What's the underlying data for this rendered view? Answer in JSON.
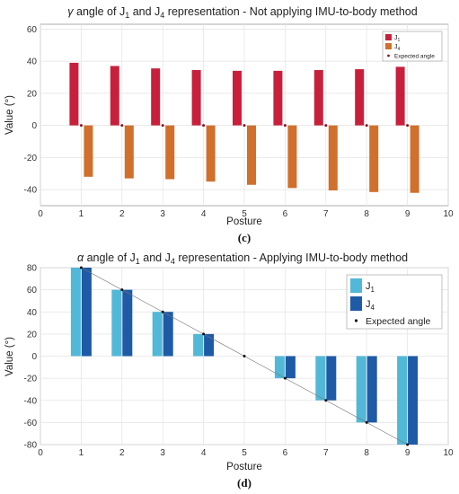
{
  "chart_data": [
    {
      "type": "bar",
      "title_symbol": "γ",
      "title_a": " angle of J",
      "title_sub1": "1",
      "title_b": " and J",
      "title_sub2": "4",
      "title_c": " representation - Not applying IMU-to-body method",
      "panel_label": "(c)",
      "xlabel": "Posture",
      "ylabel": "Value (°)",
      "xlim": [
        0,
        10
      ],
      "ylim": [
        -50,
        63
      ],
      "xticks": [
        0,
        1,
        2,
        3,
        4,
        5,
        6,
        7,
        8,
        9,
        10
      ],
      "yticks": [
        -40,
        -20,
        0,
        20,
        40,
        60
      ],
      "grid": true,
      "legend_position": "top-right",
      "x": [
        1,
        2,
        3,
        4,
        5,
        6,
        7,
        8,
        9
      ],
      "series": [
        {
          "name": "J1",
          "color": "#c8203c",
          "values": [
            39,
            37,
            35.5,
            34.5,
            34,
            34,
            34.5,
            35,
            36.5
          ]
        },
        {
          "name": "J4",
          "color": "#d0702c",
          "values": [
            -32,
            -33,
            -33.5,
            -35,
            -37,
            -39,
            -40.5,
            -41.5,
            -42
          ]
        }
      ],
      "expected": {
        "name": "Expected angle",
        "color": "#8b1420",
        "values": [
          0,
          0,
          0,
          0,
          0,
          0,
          0,
          0,
          0
        ]
      }
    },
    {
      "type": "bar",
      "title_symbol": "α",
      "title_a": " angle of J",
      "title_sub1": "1",
      "title_b": " and J",
      "title_sub2": "4",
      "title_c": " representation - Applying IMU-to-body method",
      "panel_label": "(d)",
      "xlabel": "Posture",
      "ylabel": "Value (°)",
      "xlim": [
        0,
        10
      ],
      "ylim": [
        -80,
        80
      ],
      "xticks": [
        0,
        1,
        2,
        3,
        4,
        5,
        6,
        7,
        8,
        9,
        10
      ],
      "yticks": [
        -80,
        -60,
        -40,
        -20,
        0,
        20,
        40,
        60,
        80
      ],
      "grid": true,
      "legend_position": "top-right",
      "x": [
        1,
        2,
        3,
        4,
        5,
        6,
        7,
        8,
        9
      ],
      "series": [
        {
          "name": "J1",
          "color": "#52b8d8",
          "values": [
            80,
            60,
            40,
            20,
            0,
            -20,
            -40,
            -60,
            -80
          ]
        },
        {
          "name": "J4",
          "color": "#1f5aa6",
          "values": [
            80,
            60,
            40,
            20,
            0,
            -20,
            -40,
            -60,
            -80
          ]
        }
      ],
      "expected": {
        "name": "Expected angle",
        "color": "#111111",
        "values": [
          80,
          60,
          40,
          20,
          0,
          -20,
          -40,
          -60,
          -80
        ]
      }
    }
  ]
}
